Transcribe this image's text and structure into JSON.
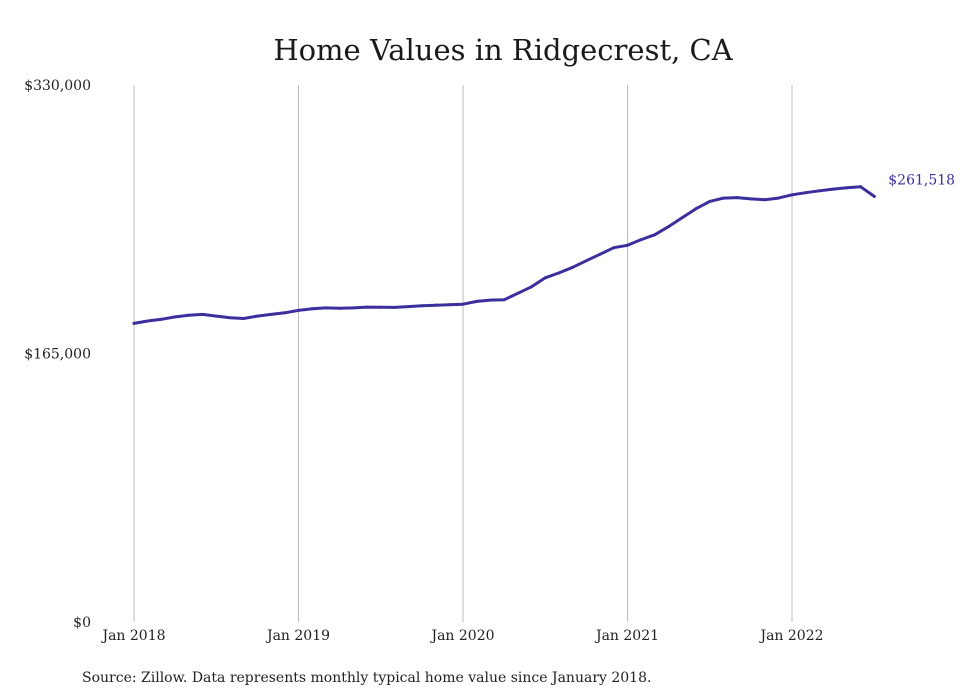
{
  "chart_data": {
    "type": "line",
    "title": "Home Values in Ridgecrest, CA",
    "source": "Source: Zillow. Data represents monthly typical home value since January 2018.",
    "xlabel": "",
    "ylabel": "",
    "ylim": [
      0,
      330000
    ],
    "yticks": [
      0,
      165000,
      330000
    ],
    "ytick_labels": [
      "$0",
      "$165,000",
      "$330,000"
    ],
    "xticks": [
      "2018-01",
      "2019-01",
      "2020-01",
      "2021-01",
      "2022-01"
    ],
    "xtick_labels": [
      "Jan 2018",
      "Jan 2019",
      "Jan 2020",
      "Jan 2021",
      "Jan 2022"
    ],
    "grid": "vertical",
    "line_color": "#3b2f9e",
    "end_label": "$261,518",
    "series": [
      {
        "x": [
          "2018-01",
          "2018-02",
          "2018-03",
          "2018-04",
          "2018-05",
          "2018-06",
          "2018-07",
          "2018-08",
          "2018-09",
          "2018-10",
          "2018-11",
          "2018-12",
          "2019-01",
          "2019-02",
          "2019-03",
          "2019-04",
          "2019-05",
          "2019-06",
          "2019-07",
          "2019-08",
          "2019-09",
          "2019-10",
          "2019-11",
          "2019-12",
          "2020-01",
          "2020-02",
          "2020-03",
          "2020-04",
          "2020-05",
          "2020-06",
          "2020-07",
          "2020-08",
          "2020-09",
          "2020-10",
          "2020-11",
          "2020-12",
          "2021-01",
          "2021-02",
          "2021-03",
          "2021-04",
          "2021-05",
          "2021-06",
          "2021-07",
          "2021-08",
          "2021-09",
          "2021-10",
          "2021-11",
          "2021-12",
          "2022-01",
          "2022-02",
          "2022-03",
          "2022-04",
          "2022-05",
          "2022-06",
          "2022-07"
        ],
        "values": [
          183500,
          185000,
          186000,
          187500,
          188500,
          189000,
          188000,
          187000,
          186500,
          188000,
          189000,
          190000,
          191500,
          192500,
          193000,
          192800,
          193000,
          193500,
          193400,
          193300,
          193800,
          194300,
          194700,
          195000,
          195300,
          197000,
          197800,
          198000,
          202000,
          206000,
          211500,
          214500,
          218000,
          222000,
          226000,
          230000,
          231500,
          235000,
          238000,
          243000,
          248500,
          254000,
          258500,
          260500,
          260800,
          260000,
          259500,
          260500,
          262500,
          263800,
          265000,
          266000,
          266800,
          267500,
          261518
        ]
      }
    ]
  }
}
